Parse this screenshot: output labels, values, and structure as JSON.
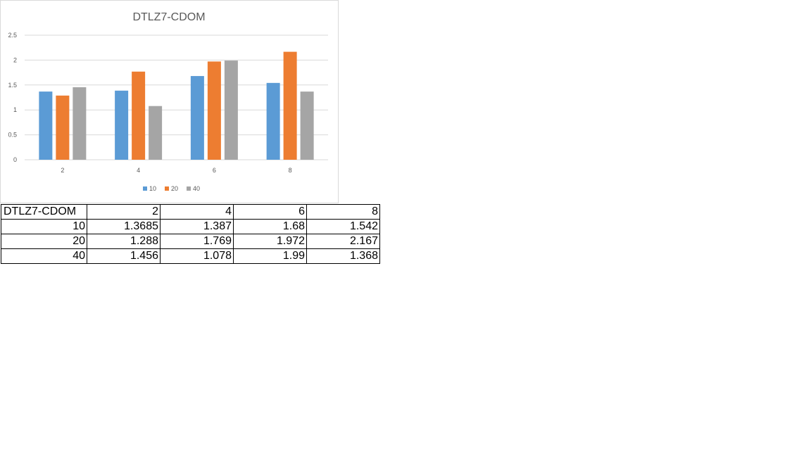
{
  "chart_data": {
    "type": "bar",
    "title": "DTLZ7-CDOM",
    "categories": [
      "2",
      "4",
      "6",
      "8"
    ],
    "series": [
      {
        "name": "10",
        "color": "#5b9bd5",
        "values": [
          1.3685,
          1.387,
          1.68,
          1.542
        ]
      },
      {
        "name": "20",
        "color": "#ed7d31",
        "values": [
          1.288,
          1.769,
          1.972,
          2.167
        ]
      },
      {
        "name": "40",
        "color": "#a5a5a5",
        "values": [
          1.456,
          1.078,
          1.99,
          1.368
        ]
      }
    ],
    "yticks": [
      "0",
      "0.5",
      "1",
      "1.5",
      "2",
      "2.5"
    ],
    "ylim": [
      0,
      2.5
    ],
    "xlabel": "",
    "ylabel": "",
    "grid": true,
    "legend": "bottom"
  },
  "table": {
    "corner": "DTLZ7-CDOM",
    "headers": [
      "2",
      "4",
      "6",
      "8"
    ],
    "rows": [
      {
        "label": "10",
        "cells": [
          "1.3685",
          "1.387",
          "1.68",
          "1.542"
        ]
      },
      {
        "label": "20",
        "cells": [
          "1.288",
          "1.769",
          "1.972",
          "2.167"
        ]
      },
      {
        "label": "40",
        "cells": [
          "1.456",
          "1.078",
          "1.99",
          "1.368"
        ]
      }
    ]
  }
}
